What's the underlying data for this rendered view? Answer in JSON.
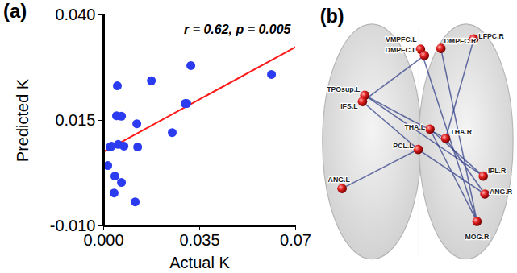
{
  "chart_data": {
    "type": "scatter",
    "panel_label": "(a)",
    "x_label": "Actual K",
    "y_label": "Predicted K",
    "annotations": [
      {
        "text": "r = 0.62, p = 0.005"
      }
    ],
    "x": [
      0.005,
      0.0047,
      0.0065,
      0.0174,
      0.0318,
      0.0303,
      0.0297,
      0.0612,
      0.0121,
      0.025,
      0.0053,
      0.0074,
      0.0029,
      0.0124,
      0.0024,
      0.0015,
      0.0041,
      0.0065,
      0.0038,
      0.0115
    ],
    "values": [
      0.0232,
      0.0161,
      0.016,
      0.0244,
      0.028,
      0.019,
      0.019,
      0.0259,
      0.0142,
      0.0121,
      0.0093,
      0.0089,
      0.0089,
      0.0087,
      0.0087,
      0.0043,
      0.0018,
      0.0003,
      -0.0022,
      -0.0043
    ],
    "color": "#2b3cf0",
    "fit": {
      "x": [
        0,
        0.07
      ],
      "y": [
        0.0076,
        0.0324
      ],
      "color": "#ff1a1a"
    },
    "xlim": [
      0,
      0.07
    ],
    "xticks": [
      {
        "value": 0,
        "label": "0.000"
      },
      0.035,
      0.07
    ],
    "ylim": [
      -0.01,
      0.04
    ],
    "yticks": [
      {
        "value": -0.01,
        "label": "-0.010"
      },
      0.015,
      {
        "value": 0.04,
        "label": "0.040"
      }
    ],
    "grid": false
  },
  "diagram": {
    "panel_label": "(b)",
    "node_color": "#e02020",
    "edge_color": "#34428a",
    "nodes": [
      {
        "label": "VMPFC.L"
      },
      {
        "label": "DMPFC.L"
      },
      {
        "label": "DMPFC.R"
      },
      {
        "label": "LFPC.R"
      },
      {
        "label": "TPOsup.L"
      },
      {
        "label": "IFS.L"
      },
      {
        "label": "THA.L"
      },
      {
        "label": "THA.R"
      },
      {
        "label": "PCL.L"
      },
      {
        "label": "IPL.R"
      },
      {
        "label": "ANG.R"
      },
      {
        "label": "MOG.R"
      },
      {
        "label": "ANG.L"
      }
    ],
    "edges": [
      [
        "VMPFC.L",
        "MOG.R"
      ],
      [
        "DMPFC.L",
        "IFS.L"
      ],
      [
        "DMPFC.R",
        "MOG.R"
      ],
      [
        "LFPC.R",
        "THA.R"
      ],
      [
        "TPOsup.L",
        "THA.R"
      ],
      [
        "TPOsup.L",
        "IPL.R"
      ],
      [
        "THA.L",
        "MOG.R"
      ],
      [
        "PCL.L",
        "ANG.R"
      ],
      [
        "ANG.L",
        "PCL.L"
      ],
      [
        "THA.R",
        "ANG.R"
      ],
      [
        "IFS.L",
        "PCL.L"
      ],
      [
        "THA.L",
        "IPL.R"
      ]
    ]
  }
}
